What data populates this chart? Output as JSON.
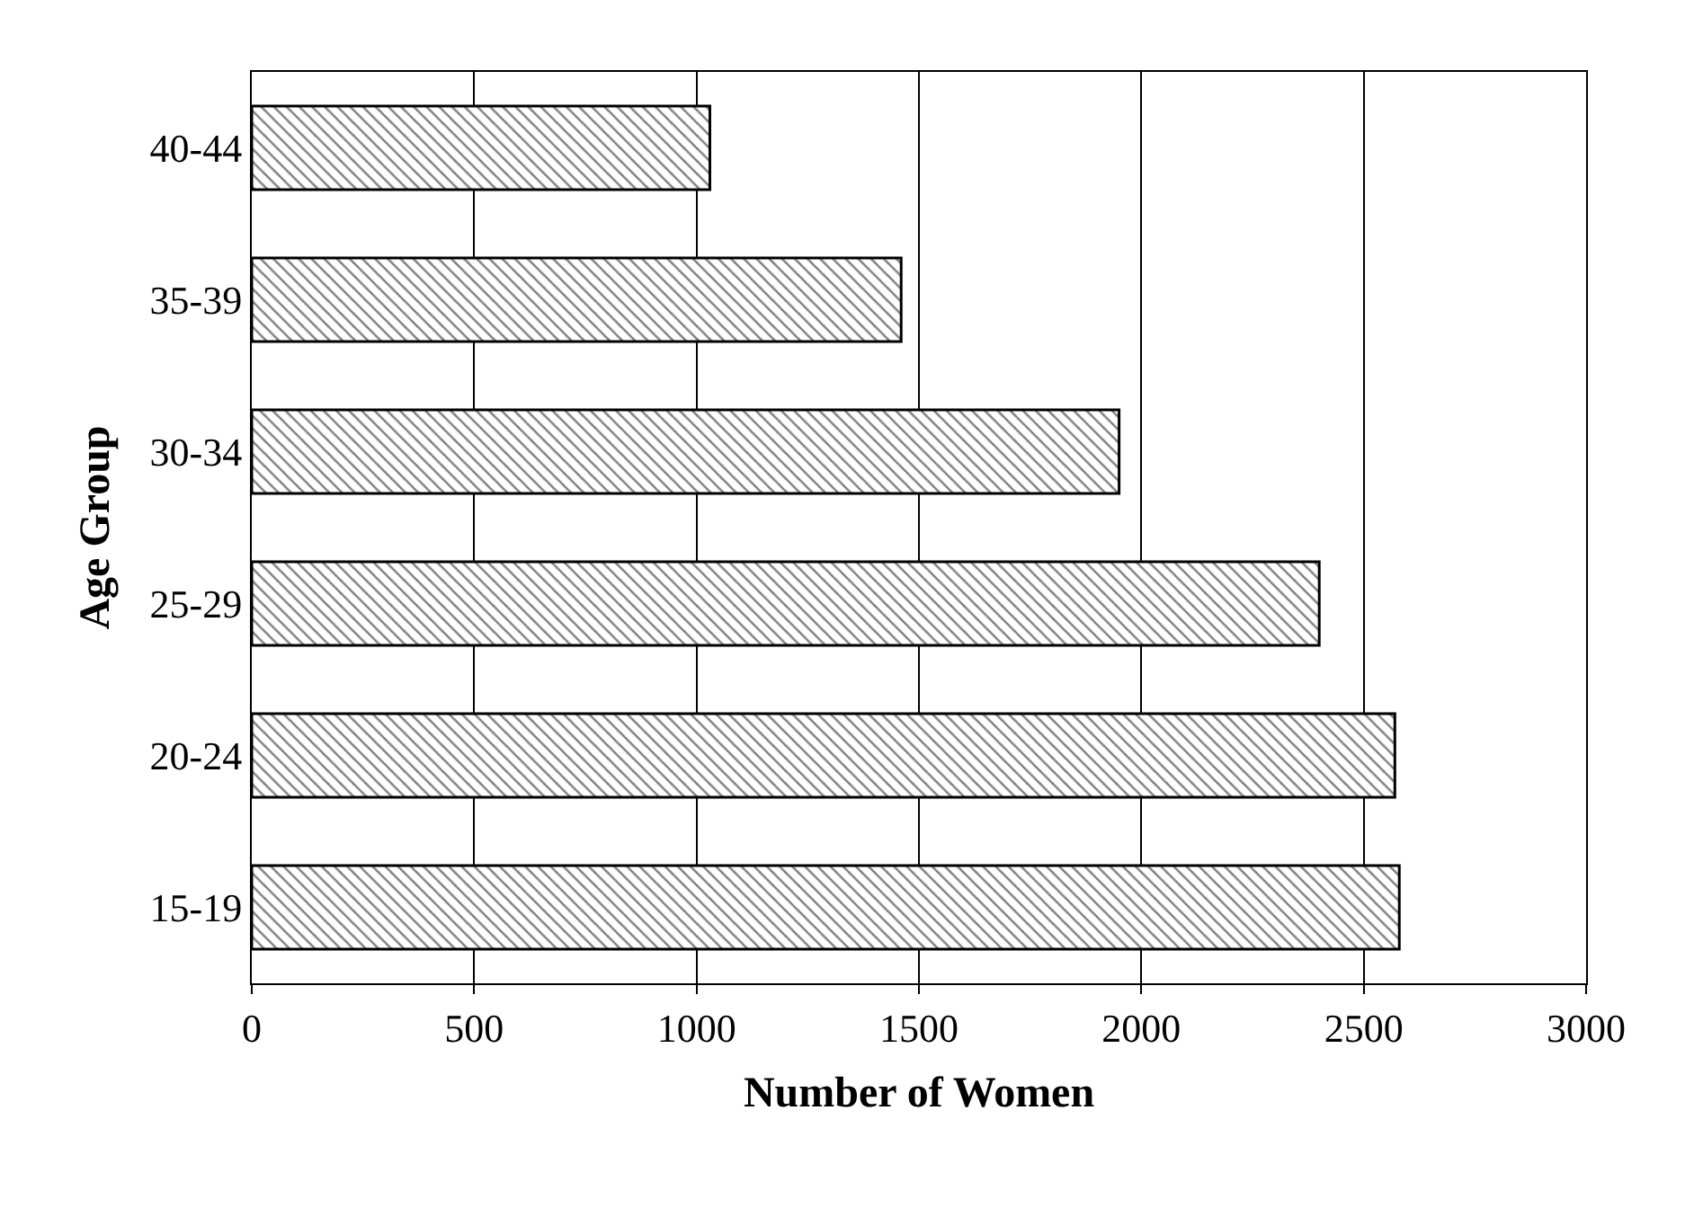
{
  "chart_data": {
    "type": "bar",
    "orientation": "horizontal",
    "categories": [
      "40-44",
      "35-39",
      "30-34",
      "25-29",
      "20-24",
      "15-19"
    ],
    "values": [
      1030,
      1460,
      1950,
      2400,
      2570,
      2580
    ],
    "color": "#000000",
    "xlabel": "Number of Women",
    "ylabel": "Age Group",
    "xlim": [
      0,
      3000
    ],
    "xticks": [
      0,
      500,
      1000,
      1500,
      2000,
      2500,
      3000
    ],
    "grid": "x"
  }
}
